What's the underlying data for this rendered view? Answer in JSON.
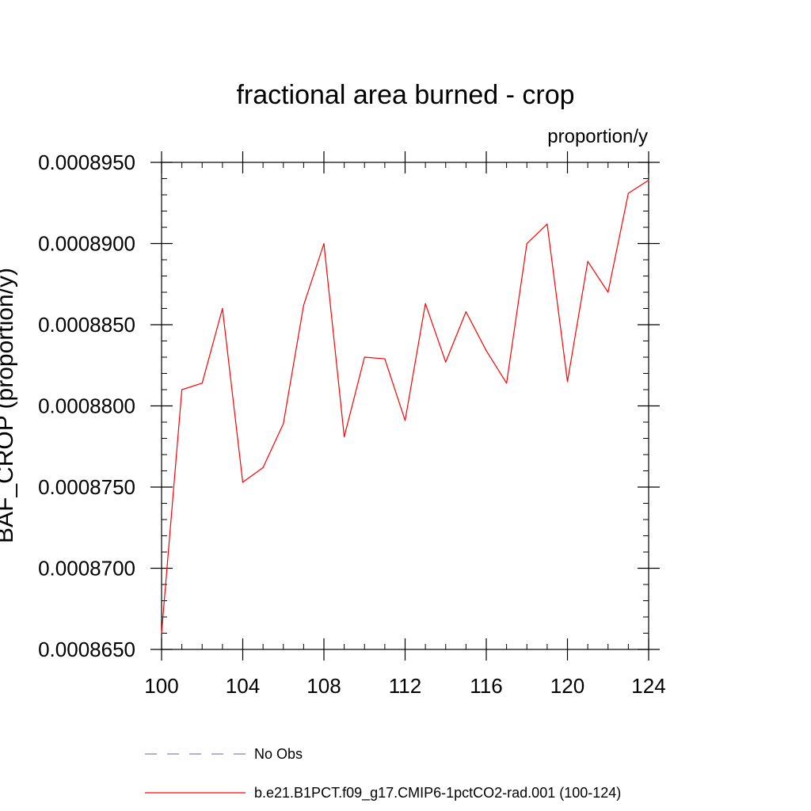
{
  "chart_data": {
    "type": "line",
    "title": "fractional area burned - crop",
    "units_label": "proportion/y",
    "ylabel": "BAF_CROP  (proportion/y)",
    "xlabel": "",
    "xlim": [
      100,
      124
    ],
    "ylim": [
      0.000865,
      0.000895
    ],
    "x_ticks": [
      100,
      104,
      108,
      112,
      116,
      120,
      124
    ],
    "x_tick_labels": [
      "100",
      "104",
      "108",
      "112",
      "116",
      "120",
      "124"
    ],
    "y_ticks": [
      0.000865,
      0.00087,
      0.000875,
      0.00088,
      0.000885,
      0.00089,
      0.000895
    ],
    "y_tick_labels": [
      "0.0008650",
      "0.0008700",
      "0.0008750",
      "0.0008800",
      "0.0008850",
      "0.0008900",
      "0.0008950"
    ],
    "x_minor_step": 1,
    "y_minor_step": 1e-06,
    "grid": false,
    "legend_position": "bottom",
    "series": [
      {
        "name": "No Obs",
        "color": "#8080c0",
        "dash": "dashed",
        "x": [],
        "values": []
      },
      {
        "name": "b.e21.B1PCT.f09_g17.CMIP6-1pctCO2-rad.001 (100-124)",
        "color": "#ff0000",
        "dash": "solid",
        "x": [
          100,
          101,
          102,
          103,
          104,
          105,
          106,
          107,
          108,
          109,
          110,
          111,
          112,
          113,
          114,
          115,
          116,
          117,
          118,
          119,
          120,
          121,
          122,
          123,
          124
        ],
        "values": [
          0.000866,
          0.000881,
          0.0008814,
          0.000886,
          0.0008753,
          0.0008762,
          0.0008789,
          0.0008862,
          0.00089,
          0.0008781,
          0.000883,
          0.0008829,
          0.0008791,
          0.0008863,
          0.0008827,
          0.0008858,
          0.0008834,
          0.0008814,
          0.00089,
          0.0008912,
          0.0008815,
          0.0008889,
          0.000887,
          0.0008931,
          0.0008939
        ]
      }
    ]
  }
}
